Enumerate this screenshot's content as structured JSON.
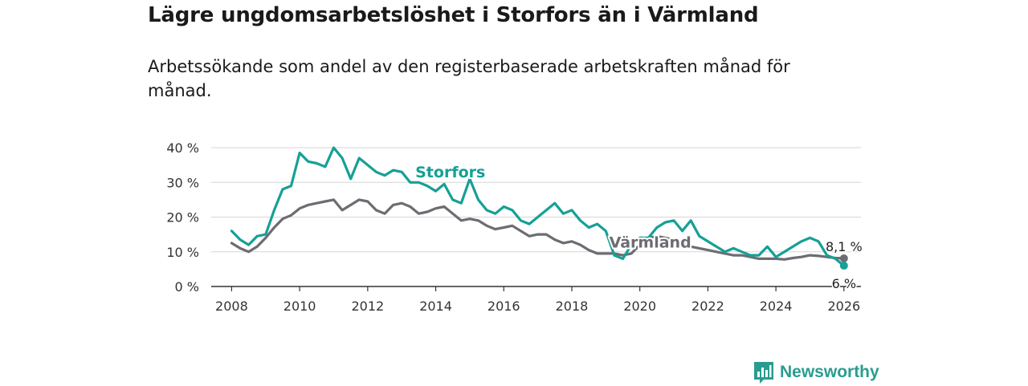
{
  "header": {
    "title": "Lägre ungdomsarbetslöshet i Storfors än i Värmland",
    "subtitle": "Arbetssökande som andel av den registerbaserade arbetskraften månad för månad."
  },
  "brand": {
    "name": "Newsworthy",
    "logo_icon": "newsworthy-bar-icon",
    "color": "#2a9c8f"
  },
  "chart_data": {
    "type": "line",
    "title": "Lägre ungdomsarbetslöshet i Storfors än i Värmland",
    "xlabel": "",
    "ylabel": "",
    "xlim": [
      2007.4,
      2026.5
    ],
    "ylim": [
      0,
      40
    ],
    "grid": true,
    "y_ticks": [
      0,
      10,
      20,
      30,
      40
    ],
    "y_tick_labels": [
      "0 %",
      "10 %",
      "20 %",
      "30 %",
      "40 %"
    ],
    "x_ticks": [
      2008,
      2010,
      2012,
      2014,
      2016,
      2018,
      2020,
      2022,
      2024,
      2026
    ],
    "x_tick_labels": [
      "2008",
      "2010",
      "2012",
      "2014",
      "2016",
      "2018",
      "2020",
      "2022",
      "2024",
      "2026"
    ],
    "series": [
      {
        "name": "Värmland",
        "color": "#6e6c72",
        "end_label": "8,1 %",
        "label_position": [
          2019.1,
          11.2
        ],
        "points": [
          [
            2008.0,
            12.5
          ],
          [
            2008.25,
            11.0
          ],
          [
            2008.5,
            10.0
          ],
          [
            2008.75,
            11.5
          ],
          [
            2009.0,
            14.0
          ],
          [
            2009.25,
            17.0
          ],
          [
            2009.5,
            19.5
          ],
          [
            2009.75,
            20.5
          ],
          [
            2010.0,
            22.5
          ],
          [
            2010.25,
            23.5
          ],
          [
            2010.5,
            24.0
          ],
          [
            2010.75,
            24.5
          ],
          [
            2011.0,
            25.0
          ],
          [
            2011.25,
            22.0
          ],
          [
            2011.5,
            23.5
          ],
          [
            2011.75,
            25.0
          ],
          [
            2012.0,
            24.5
          ],
          [
            2012.25,
            22.0
          ],
          [
            2012.5,
            21.0
          ],
          [
            2012.75,
            23.5
          ],
          [
            2013.0,
            24.0
          ],
          [
            2013.25,
            23.0
          ],
          [
            2013.5,
            21.0
          ],
          [
            2013.75,
            21.5
          ],
          [
            2014.0,
            22.5
          ],
          [
            2014.25,
            23.0
          ],
          [
            2014.5,
            21.0
          ],
          [
            2014.75,
            19.0
          ],
          [
            2015.0,
            19.5
          ],
          [
            2015.25,
            19.0
          ],
          [
            2015.5,
            17.5
          ],
          [
            2015.75,
            16.5
          ],
          [
            2016.0,
            17.0
          ],
          [
            2016.25,
            17.5
          ],
          [
            2016.5,
            16.0
          ],
          [
            2016.75,
            14.5
          ],
          [
            2017.0,
            15.0
          ],
          [
            2017.25,
            15.0
          ],
          [
            2017.5,
            13.5
          ],
          [
            2017.75,
            12.5
          ],
          [
            2018.0,
            13.0
          ],
          [
            2018.25,
            12.0
          ],
          [
            2018.5,
            10.5
          ],
          [
            2018.75,
            9.5
          ],
          [
            2019.0,
            9.5
          ],
          [
            2019.25,
            9.5
          ],
          [
            2019.5,
            9.0
          ],
          [
            2019.75,
            9.5
          ],
          [
            2020.0,
            12.0
          ],
          [
            2020.25,
            14.0
          ],
          [
            2020.5,
            14.5
          ],
          [
            2020.75,
            14.0
          ],
          [
            2021.0,
            13.5
          ],
          [
            2021.25,
            12.5
          ],
          [
            2021.5,
            11.5
          ],
          [
            2021.75,
            11.0
          ],
          [
            2022.0,
            10.5
          ],
          [
            2022.25,
            10.0
          ],
          [
            2022.5,
            9.5
          ],
          [
            2022.75,
            9.0
          ],
          [
            2023.0,
            9.0
          ],
          [
            2023.25,
            8.5
          ],
          [
            2023.5,
            8.0
          ],
          [
            2023.75,
            8.0
          ],
          [
            2024.0,
            8.0
          ],
          [
            2024.25,
            7.8
          ],
          [
            2024.5,
            8.2
          ],
          [
            2024.75,
            8.5
          ],
          [
            2025.0,
            9.0
          ],
          [
            2025.25,
            8.8
          ],
          [
            2025.5,
            8.5
          ],
          [
            2025.75,
            8.2
          ],
          [
            2026.0,
            8.1
          ]
        ]
      },
      {
        "name": "Storfors",
        "color": "#16a096",
        "end_label": "6 %",
        "label_position": [
          2013.4,
          31.5
        ],
        "points": [
          [
            2008.0,
            16.0
          ],
          [
            2008.25,
            13.5
          ],
          [
            2008.5,
            12.0
          ],
          [
            2008.75,
            14.5
          ],
          [
            2009.0,
            15.0
          ],
          [
            2009.25,
            22.0
          ],
          [
            2009.5,
            28.0
          ],
          [
            2009.75,
            29.0
          ],
          [
            2010.0,
            38.5
          ],
          [
            2010.25,
            36.0
          ],
          [
            2010.5,
            35.5
          ],
          [
            2010.75,
            34.5
          ],
          [
            2011.0,
            40.0
          ],
          [
            2011.25,
            37.0
          ],
          [
            2011.5,
            31.0
          ],
          [
            2011.75,
            37.0
          ],
          [
            2012.0,
            35.0
          ],
          [
            2012.25,
            33.0
          ],
          [
            2012.5,
            32.0
          ],
          [
            2012.75,
            33.5
          ],
          [
            2013.0,
            33.0
          ],
          [
            2013.25,
            30.0
          ],
          [
            2013.5,
            30.0
          ],
          [
            2013.75,
            29.0
          ],
          [
            2014.0,
            27.5
          ],
          [
            2014.25,
            29.5
          ],
          [
            2014.5,
            25.0
          ],
          [
            2014.75,
            24.0
          ],
          [
            2015.0,
            31.0
          ],
          [
            2015.25,
            25.0
          ],
          [
            2015.5,
            22.0
          ],
          [
            2015.75,
            21.0
          ],
          [
            2016.0,
            23.0
          ],
          [
            2016.25,
            22.0
          ],
          [
            2016.5,
            19.0
          ],
          [
            2016.75,
            18.0
          ],
          [
            2017.0,
            20.0
          ],
          [
            2017.25,
            22.0
          ],
          [
            2017.5,
            24.0
          ],
          [
            2017.75,
            21.0
          ],
          [
            2018.0,
            22.0
          ],
          [
            2018.25,
            19.0
          ],
          [
            2018.5,
            17.0
          ],
          [
            2018.75,
            18.0
          ],
          [
            2019.0,
            16.0
          ],
          [
            2019.25,
            9.0
          ],
          [
            2019.5,
            8.0
          ],
          [
            2019.75,
            12.0
          ],
          [
            2020.0,
            14.0
          ],
          [
            2020.25,
            14.0
          ],
          [
            2020.5,
            17.0
          ],
          [
            2020.75,
            18.5
          ],
          [
            2021.0,
            19.0
          ],
          [
            2021.25,
            16.0
          ],
          [
            2021.5,
            19.0
          ],
          [
            2021.75,
            14.5
          ],
          [
            2022.0,
            13.0
          ],
          [
            2022.25,
            11.5
          ],
          [
            2022.5,
            10.0
          ],
          [
            2022.75,
            11.0
          ],
          [
            2023.0,
            10.0
          ],
          [
            2023.25,
            9.0
          ],
          [
            2023.5,
            9.0
          ],
          [
            2023.75,
            11.5
          ],
          [
            2024.0,
            8.5
          ],
          [
            2024.25,
            10.0
          ],
          [
            2024.5,
            11.5
          ],
          [
            2024.75,
            13.0
          ],
          [
            2025.0,
            14.0
          ],
          [
            2025.25,
            13.0
          ],
          [
            2025.5,
            9.0
          ],
          [
            2025.75,
            8.0
          ],
          [
            2026.0,
            6.0
          ]
        ]
      }
    ]
  }
}
